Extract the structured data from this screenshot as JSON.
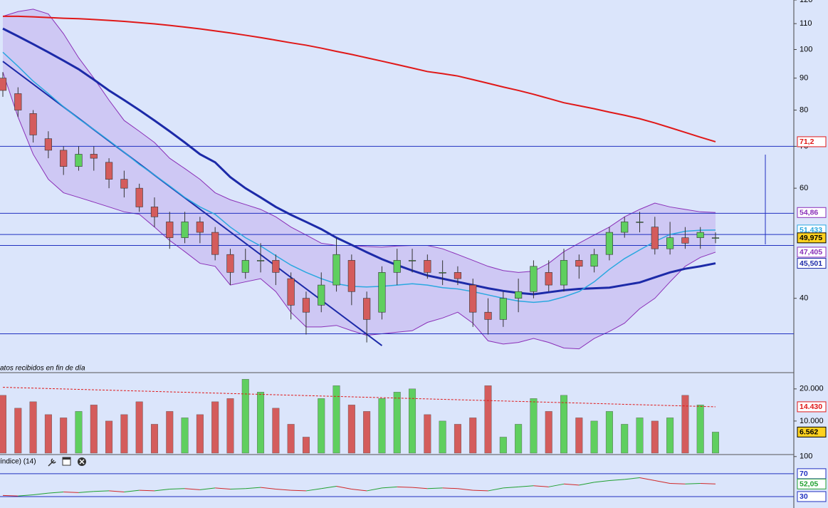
{
  "chart_data": [
    {
      "type": "candlestick",
      "log_scale": true,
      "ylim": [
        30.5,
        120
      ],
      "yticks": [
        120,
        110,
        100,
        90,
        80,
        70,
        60,
        40
      ],
      "note": "atos recibidos en fin de día",
      "up_color": "#5fcf5f",
      "down_color": "#d45c5c",
      "open": [
        90,
        85,
        79,
        72,
        69,
        65,
        68,
        66,
        62,
        60,
        56,
        53,
        50,
        53,
        51,
        47,
        44,
        46,
        46,
        43,
        40,
        39,
        42,
        46,
        40,
        38,
        44,
        46,
        46,
        44,
        44,
        42,
        38,
        37,
        40,
        41,
        44,
        42,
        46,
        45,
        47,
        51,
        53,
        52,
        48,
        50,
        50,
        50
      ],
      "high": [
        92,
        87,
        80,
        74,
        70,
        70,
        70,
        67,
        64,
        61,
        58,
        55,
        55,
        54,
        52,
        48,
        48,
        49,
        47,
        44,
        41,
        44,
        50,
        47,
        41,
        45,
        48,
        48,
        47,
        46,
        45,
        43,
        40,
        41,
        43,
        46,
        46,
        48,
        47,
        48,
        52,
        54,
        55,
        54,
        53,
        52,
        52,
        51
      ],
      "low": [
        84,
        78,
        71,
        67,
        63,
        64,
        64,
        60,
        58,
        55,
        52,
        48,
        49,
        49,
        46,
        42,
        43,
        44,
        42,
        37,
        35,
        38,
        41,
        39,
        34,
        37,
        42,
        44,
        43,
        42,
        42,
        36,
        35,
        36,
        38,
        40,
        41,
        41,
        43,
        44,
        46,
        50,
        51,
        47,
        47,
        48,
        48,
        49
      ],
      "close": [
        86,
        80,
        73,
        69,
        65,
        68,
        67,
        62,
        60,
        56,
        54,
        50,
        53,
        51,
        47,
        44,
        46,
        46,
        44,
        39,
        38,
        42,
        47,
        41,
        37,
        44,
        46,
        46,
        44,
        44,
        43,
        38,
        37,
        40,
        41,
        45,
        42,
        46,
        45,
        47,
        51,
        53,
        53,
        48,
        50,
        49,
        51,
        50
      ],
      "band_fill": "#c9bdf2",
      "bands": [
        {
          "color": "#8a2fb8",
          "values": [
            113,
            115,
            116,
            114,
            106,
            97,
            90,
            83,
            77,
            74,
            71,
            67,
            64.5,
            62,
            59,
            57.5,
            56.5,
            55.5,
            54,
            52,
            50.5,
            49,
            48.6,
            48.6,
            48.4,
            48.3,
            48.5,
            48.6,
            48.6,
            48,
            47,
            46,
            45,
            44.3,
            44,
            44.2,
            45.5,
            47.5,
            49,
            50.5,
            52,
            54,
            55.5,
            56.8,
            56,
            55.5,
            55,
            54.86
          ]
        },
        {
          "color": "#8a2fb8",
          "values": [
            92,
            78,
            68,
            62,
            59,
            58,
            57,
            56,
            55,
            54.5,
            52,
            49.5,
            47.5,
            45.5,
            45,
            42,
            42.5,
            43,
            41,
            38,
            36,
            36,
            36.2,
            35.5,
            34.9,
            35.1,
            35.3,
            35.5,
            36.6,
            37.2,
            38,
            36.5,
            34.2,
            33.8,
            34,
            34.5,
            34,
            33.3,
            33.2,
            34.5,
            35.4,
            36.5,
            38.5,
            40,
            42.5,
            45,
            46.5,
            47.405
          ]
        }
      ],
      "lines": [
        {
          "color": "#e01818",
          "width": 2,
          "values": [
            113,
            113,
            112.8,
            112.5,
            112.2,
            112,
            111.7,
            111.3,
            110.9,
            110.4,
            109.9,
            109.3,
            108.6,
            107.9,
            107.1,
            106.3,
            105.4,
            104.5,
            103.5,
            102.5,
            101.6,
            100.5,
            99.3,
            98.2,
            97,
            95.8,
            94.6,
            93.4,
            92.2,
            91.5,
            90.7,
            89.5,
            88.3,
            87.1,
            86,
            84.8,
            83.5,
            82.2,
            81.3,
            80.4,
            79.4,
            78.5,
            77.5,
            76.3,
            75,
            73.7,
            72.4,
            71.2
          ]
        },
        {
          "color": "#1c2aa8",
          "width": 3,
          "values": [
            108,
            105,
            102,
            99,
            96,
            93,
            89.5,
            86,
            83,
            80,
            77,
            74,
            71,
            68,
            66,
            62.5,
            60,
            58,
            56,
            54.4,
            53,
            51.6,
            50,
            48.7,
            47.4,
            46.2,
            45.2,
            44.3,
            43.5,
            43,
            42.5,
            42,
            41.5,
            41.1,
            40.8,
            40.6,
            40.9,
            41.2,
            41.4,
            41.5,
            41.6,
            42,
            42.4,
            43.2,
            44,
            44.6,
            45,
            45.501
          ]
        },
        {
          "color": "#2aa8e0",
          "width": 1.5,
          "values": [
            99,
            94,
            89,
            85,
            81,
            77.5,
            74.5,
            71.5,
            68.5,
            65.5,
            63,
            60.5,
            58,
            56,
            54.5,
            52,
            50,
            48.5,
            46.8,
            45.2,
            44,
            43,
            42.2,
            41.8,
            41.7,
            41.8,
            42,
            42.2,
            42,
            41.6,
            41.4,
            41,
            40.5,
            40,
            39.6,
            39.4,
            39.6,
            40.2,
            41,
            42.5,
            44.5,
            46.3,
            47.8,
            49.3,
            50.6,
            51.2,
            51.4,
            51.433
          ]
        }
      ],
      "trendline": {
        "color": "#1c2aa8",
        "x": [
          0,
          25
        ],
        "values": [
          95.7,
          33.6
        ]
      },
      "hlines": {
        "color": "#2030c0",
        "values": [
          70,
          54.7,
          50.6,
          48.6,
          35.1
        ]
      },
      "price_labels": {
        "values": [
          71.2,
          54.86,
          51.433,
          49.975,
          47.405,
          45.501
        ],
        "value_labels": [
          "71,2",
          "54,86",
          "51,433",
          "49,975",
          "47,405",
          "45,501"
        ],
        "colors": [
          "#e01818",
          "#8a2fb8",
          "#2aa8e0",
          "#000000",
          "#8a2fb8",
          "#1c2aa8"
        ],
        "fills": [
          "#ffffff",
          "#ffffff",
          "#ffffff",
          "#ffd21f",
          "#ffffff",
          "#ffffff"
        ]
      }
    },
    {
      "type": "bar",
      "ylim": [
        0,
        24400
      ],
      "yticks": [
        {
          "value": 20000,
          "label": "20.000"
        },
        {
          "value": 10000,
          "label": "10.000"
        }
      ],
      "values": [
        18000,
        14000,
        16000,
        12000,
        11000,
        13000,
        15000,
        10000,
        12000,
        16000,
        9000,
        13000,
        11000,
        12000,
        16000,
        17000,
        23000,
        19000,
        14000,
        9000,
        5000,
        17000,
        21000,
        15000,
        13000,
        17000,
        19000,
        20000,
        12000,
        10000,
        9000,
        11000,
        21000,
        5000,
        9000,
        17000,
        13000,
        18000,
        11000,
        10000,
        13000,
        9000,
        11000,
        10000,
        11000,
        18000,
        15000,
        6562
      ],
      "average": {
        "color": "#e01818",
        "x": [
          0,
          47
        ],
        "values": [
          20500,
          14430
        ]
      },
      "price_labels": {
        "values": [
          14430,
          6562
        ],
        "value_labels": [
          "14.430",
          "6.562"
        ],
        "colors": [
          "#e01818",
          "#000000"
        ],
        "fills": [
          "#ffffff",
          "#ffd21f"
        ]
      }
    },
    {
      "type": "line",
      "title": "índice) (14)",
      "ylim": [
        10,
        101
      ],
      "yticks": [
        100
      ],
      "up_color": "#20a030",
      "down_color": "#d02828",
      "values": [
        32,
        31,
        33,
        36,
        38,
        37,
        39,
        40,
        38,
        41,
        40,
        43,
        44,
        42,
        45,
        43,
        44,
        46,
        43,
        41,
        40,
        44,
        48,
        43,
        40,
        45,
        47,
        46,
        44,
        45,
        44,
        41,
        40,
        45,
        47,
        49,
        47,
        52,
        50,
        55,
        58,
        60,
        63,
        58,
        53,
        52,
        53,
        52.05
      ],
      "levels": {
        "color": "#2030c0",
        "values": [
          70,
          30
        ]
      },
      "price_labels": {
        "values": [
          70,
          52.05,
          30
        ],
        "value_labels": [
          "70",
          "52,05",
          "30"
        ],
        "colors": [
          "#2030c0",
          "#20a030",
          "#2030c0"
        ],
        "fills": [
          "#ffffff",
          "#ffffff",
          "#ffffff"
        ]
      }
    }
  ]
}
